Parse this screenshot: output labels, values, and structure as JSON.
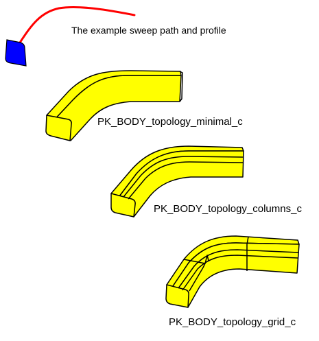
{
  "labels": {
    "sweep": "The example sweep path and profile",
    "minimal": "PK_BODY_topology_minimal_c",
    "columns": "PK_BODY_topology_columns_c",
    "grid": "PK_BODY_topology_grid_c"
  },
  "colors": {
    "path": "#ff0000",
    "profile": "#0000ff",
    "body": "#ffff00",
    "edge": "#000000"
  }
}
